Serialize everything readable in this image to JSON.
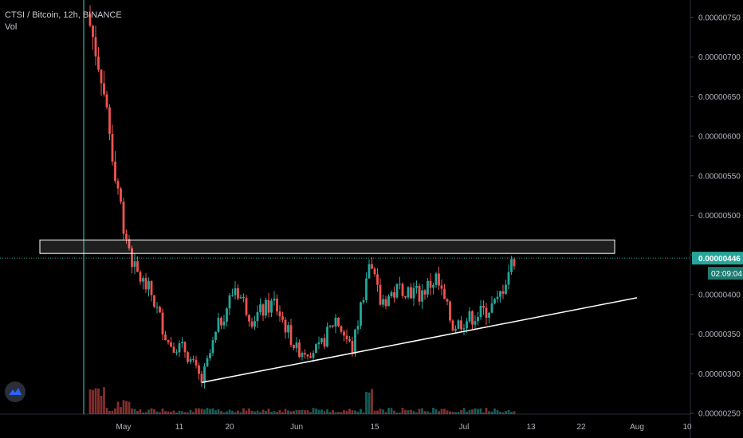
{
  "legend": {
    "symbol_line": "CTSI / Bitcoin, 12h, BINANCE",
    "indicator": "Vol"
  },
  "price_tag": {
    "value": "0.00000446",
    "countdown": "02:09:04"
  },
  "colors": {
    "up": "#26a69a",
    "down": "#ef5350",
    "price_tag_bg": "#26a69a",
    "countdown_bg": "#1d7a70",
    "zone": "#ffffff",
    "trendline": "#ffffff"
  },
  "logo_icon": "tradingview-logo-icon",
  "chart_data": {
    "type": "candlestick",
    "title": "",
    "symbol": "CTSI / Bitcoin",
    "interval": "12h",
    "exchange": "BINANCE",
    "y_axis": {
      "side": "right",
      "range": [
        2.45e-06,
        7.62e-06
      ],
      "ticks": [
        "0.00000250",
        "0.00000300",
        "0.00000350",
        "0.00000400",
        "0.00000450",
        "0.00000500",
        "0.00000550",
        "0.00000600",
        "0.00000650",
        "0.00000700",
        "0.00000750"
      ]
    },
    "x_axis": {
      "ticks": [
        "May",
        "11",
        "20",
        "Jun",
        "15",
        "Jul",
        "13",
        "22",
        "Aug",
        "10"
      ]
    },
    "last_price": 4.46e-06,
    "listing_marker": "2020-04-24",
    "resistance_zone": {
      "low": 4.52e-06,
      "high": 4.69e-06,
      "from": "2020-04-16",
      "to": "2020-07-28"
    },
    "trendline": [
      {
        "date": "2020-05-15",
        "value": 2.89e-06
      },
      {
        "date": "2020-08-01",
        "value": 3.96e-06
      }
    ],
    "close_anchors": [
      [
        "2020-04-25",
        7.4e-06
      ],
      [
        "2020-04-27",
        6.8e-06
      ],
      [
        "2020-04-29",
        5.8e-06
      ],
      [
        "2020-05-01",
        4.9e-06
      ],
      [
        "2020-05-03",
        4.3e-06
      ],
      [
        "2020-05-06",
        4e-06
      ],
      [
        "2020-05-09",
        3.4e-06
      ],
      [
        "2020-05-12",
        3.3e-06
      ],
      [
        "2020-05-15",
        2.9e-06
      ],
      [
        "2020-05-18",
        3.6e-06
      ],
      [
        "2020-05-21",
        4.1e-06
      ],
      [
        "2020-05-24",
        3.7e-06
      ],
      [
        "2020-05-28",
        3.9e-06
      ],
      [
        "2020-06-01",
        3.3e-06
      ],
      [
        "2020-06-05",
        3.3e-06
      ],
      [
        "2020-06-08",
        3.7e-06
      ],
      [
        "2020-06-11",
        3.3e-06
      ],
      [
        "2020-06-14",
        4.4e-06
      ],
      [
        "2020-06-16",
        3.9e-06
      ],
      [
        "2020-06-20",
        4.1e-06
      ],
      [
        "2020-06-23",
        4e-06
      ],
      [
        "2020-06-26",
        4.2e-06
      ],
      [
        "2020-06-29",
        3.6e-06
      ],
      [
        "2020-07-02",
        3.7e-06
      ],
      [
        "2020-07-05",
        3.8e-06
      ],
      [
        "2020-07-07",
        3.9e-06
      ],
      [
        "2020-07-09",
        4.3e-06
      ],
      [
        "2020-07-10",
        4.46e-06
      ]
    ],
    "volume": "relative bars along bottom, tallest near listing (2020-04-24) and 2020-06-14"
  }
}
